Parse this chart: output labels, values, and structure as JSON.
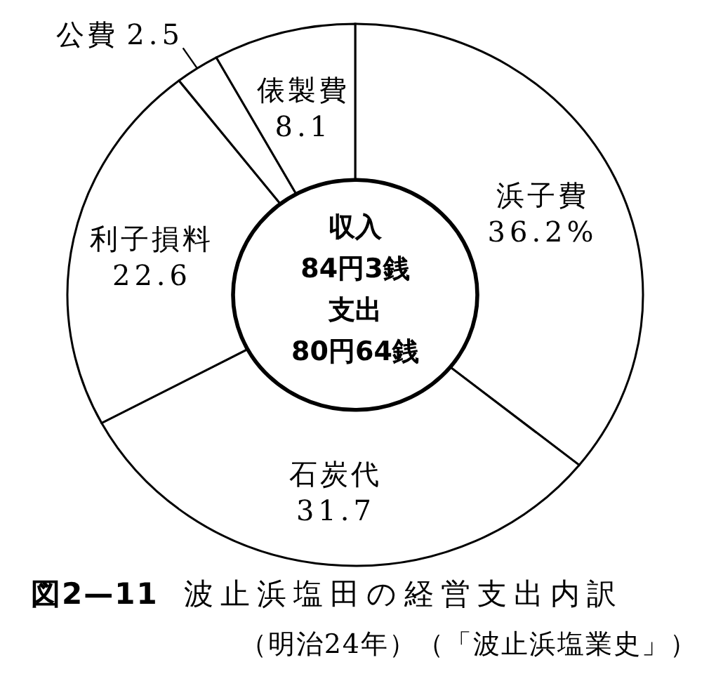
{
  "chart_data": {
    "type": "donut",
    "title": "図2—11　波止浜塩田の経営支出内訳",
    "subtitle": "（明治24年）（「波止浜塩業史」）",
    "categories": [
      "浜子費",
      "石炭代",
      "利子損料",
      "公費",
      "俵製費"
    ],
    "values": [
      36.2,
      31.7,
      22.6,
      2.5,
      8.1
    ],
    "colors": [
      "#ffffff",
      "#ffffff",
      "#ffffff",
      "#ffffff",
      "#ffffff"
    ],
    "value_labels": [
      "36.2%",
      "31.7",
      "22.6",
      "2.5",
      "8.1"
    ],
    "annotations": [
      "収入",
      "84円3銭",
      "支出",
      "80円64銭"
    ]
  }
}
